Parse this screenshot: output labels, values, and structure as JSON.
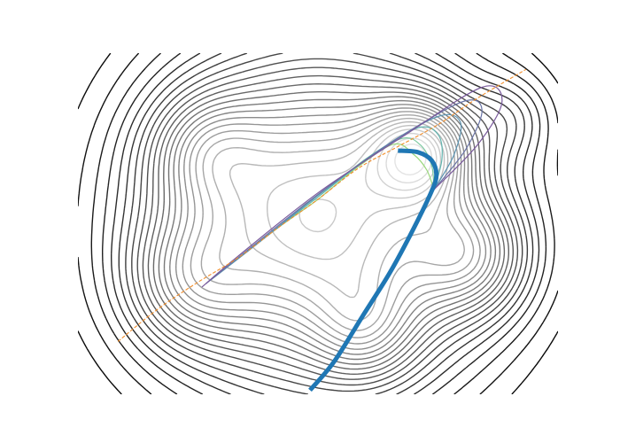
{
  "chart_data": {
    "type": "contour",
    "title": "",
    "xlabel": "",
    "ylabel": "",
    "axes_visible": false,
    "grid": false,
    "xlim": [
      -3,
      3
    ],
    "ylim": [
      -2.1,
      2.1
    ],
    "contour_levels": 26,
    "contour_colormap": [
      "#000000",
      "#ececec"
    ],
    "overlays": [
      {
        "label": "dashed-diagonal",
        "style": "dashed",
        "color": "#f28e2b",
        "points": [
          [
            -2.5,
            -1.45
          ],
          [
            -2.0,
            -1.05
          ],
          [
            -1.5,
            -0.72
          ],
          [
            -1.0,
            -0.42
          ],
          [
            -0.5,
            -0.05
          ],
          [
            0.0,
            0.3
          ],
          [
            0.5,
            0.68
          ],
          [
            1.0,
            0.95
          ],
          [
            1.5,
            1.22
          ],
          [
            2.0,
            1.55
          ],
          [
            2.6,
            1.9
          ]
        ]
      },
      {
        "label": "thick-path",
        "style": "solid",
        "color": "#1f77b4",
        "points": [
          [
            1.0,
            0.9
          ],
          [
            1.25,
            0.88
          ],
          [
            1.42,
            0.78
          ],
          [
            1.48,
            0.6
          ],
          [
            1.42,
            0.4
          ],
          [
            1.2,
            -0.05
          ],
          [
            0.9,
            -0.6
          ],
          [
            0.55,
            -1.15
          ],
          [
            0.2,
            -1.7
          ],
          [
            -0.1,
            -2.05
          ]
        ]
      },
      {
        "label": "thin-trajectories",
        "style": "solid",
        "colors": [
          "#9ad77c",
          "#7cc9a0",
          "#63b5b0",
          "#5a92b0",
          "#6a74a6",
          "#7a5a9c"
        ],
        "start": [
          1.45,
          0.42
        ],
        "curves": [
          [
            [
              1.45,
              0.42
            ],
            [
              1.36,
              0.66
            ],
            [
              1.2,
              0.85
            ],
            [
              0.95,
              0.98
            ],
            [
              0.5,
              0.7
            ],
            [
              0.0,
              0.3
            ],
            [
              -0.5,
              -0.05
            ],
            [
              -1.2,
              -0.58
            ]
          ],
          [
            [
              1.45,
              0.42
            ],
            [
              1.42,
              0.72
            ],
            [
              1.28,
              0.97
            ],
            [
              1.05,
              1.05
            ],
            [
              0.6,
              0.8
            ],
            [
              0.0,
              0.33
            ],
            [
              -0.6,
              -0.12
            ],
            [
              -1.25,
              -0.62
            ]
          ],
          [
            [
              1.45,
              0.42
            ],
            [
              1.55,
              0.8
            ],
            [
              1.5,
              1.1
            ],
            [
              1.25,
              1.18
            ],
            [
              0.7,
              0.86
            ],
            [
              0.0,
              0.33
            ],
            [
              -0.7,
              -0.2
            ],
            [
              -1.3,
              -0.66
            ]
          ],
          [
            [
              1.45,
              0.42
            ],
            [
              1.7,
              0.85
            ],
            [
              1.78,
              1.25
            ],
            [
              1.5,
              1.32
            ],
            [
              0.8,
              0.93
            ],
            [
              0.0,
              0.35
            ],
            [
              -0.8,
              -0.28
            ],
            [
              -1.35,
              -0.7
            ]
          ],
          [
            [
              1.45,
              0.42
            ],
            [
              1.85,
              0.92
            ],
            [
              2.05,
              1.4
            ],
            [
              1.8,
              1.5
            ],
            [
              0.95,
              1.02
            ],
            [
              0.0,
              0.36
            ],
            [
              -0.9,
              -0.34
            ],
            [
              -1.4,
              -0.74
            ]
          ],
          [
            [
              1.45,
              0.42
            ],
            [
              2.0,
              0.98
            ],
            [
              2.3,
              1.5
            ],
            [
              2.05,
              1.68
            ],
            [
              1.1,
              1.1
            ],
            [
              0.0,
              0.38
            ],
            [
              -1.0,
              -0.4
            ],
            [
              -1.45,
              -0.78
            ]
          ]
        ]
      }
    ]
  }
}
